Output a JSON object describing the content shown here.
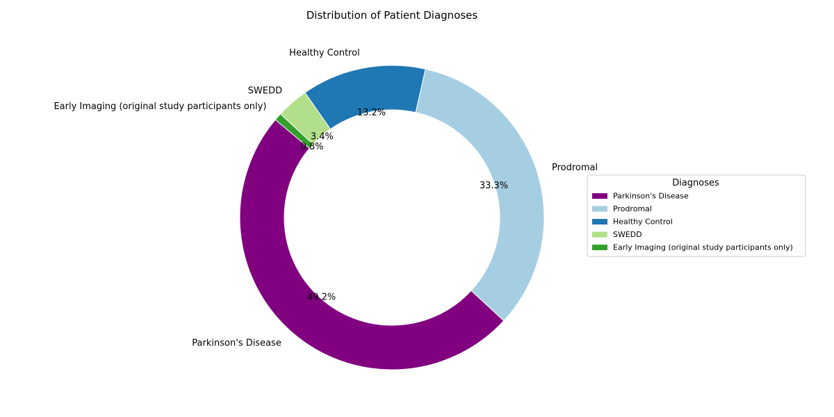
{
  "chart_data": {
    "type": "pie",
    "style": "donut",
    "title": "Distribution of Patient Diagnoses",
    "start_angle_deg": 140,
    "direction": "counterclockwise",
    "slices": [
      {
        "label": "Parkinson's Disease",
        "percent": 49.2,
        "percent_label": "49.2%",
        "color": "#800080"
      },
      {
        "label": "Prodromal",
        "percent": 33.3,
        "percent_label": "33.3%",
        "color": "#a6cee3"
      },
      {
        "label": "Healthy Control",
        "percent": 13.2,
        "percent_label": "13.2%",
        "color": "#1f78b4"
      },
      {
        "label": "SWEDD",
        "percent": 3.4,
        "percent_label": "3.4%",
        "color": "#b2df8a"
      },
      {
        "label": "Early Imaging (original study participants only)",
        "percent": 0.8,
        "percent_label": "0.8%",
        "color": "#33a02c"
      }
    ],
    "legend": {
      "title": "Diagnoses",
      "placement": "right",
      "entries": [
        "Parkinson's Disease",
        "Prodromal",
        "Healthy Control",
        "SWEDD",
        "Early Imaging (original study participants only)"
      ]
    }
  }
}
